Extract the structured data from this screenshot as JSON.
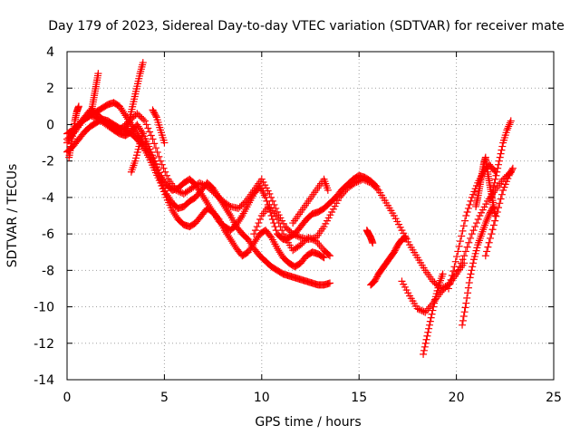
{
  "chart_data": {
    "type": "scatter",
    "title": "Day 179 of 2023, Sidereal Day-to-day VTEC variation (SDTVAR) for receiver mate",
    "xlabel": "GPS time / hours",
    "ylabel": "SDTVAR / TECUs",
    "xlim": [
      0,
      25
    ],
    "ylim": [
      -14,
      4
    ],
    "xticks": [
      0,
      5,
      10,
      15,
      20,
      25
    ],
    "yticks": [
      -14,
      -12,
      -10,
      -8,
      -6,
      -4,
      -2,
      0,
      2,
      4
    ],
    "grid": true,
    "marker": "+",
    "series": [
      {
        "color": "#ff0000",
        "tracks": [
          {
            "x": [
              0.0,
              0.3,
              0.6,
              0.9,
              1.2,
              1.5,
              1.8,
              2.1,
              2.4,
              2.7,
              3.0,
              3.3,
              3.6,
              3.9,
              4.2,
              4.5,
              4.8,
              5.1,
              5.4,
              5.7,
              6.0,
              6.3,
              6.6,
              6.9,
              7.2,
              7.5,
              7.8,
              8.1,
              8.4,
              8.7,
              9.0,
              9.3,
              9.6,
              9.9,
              10.2,
              10.5,
              10.8,
              11.1,
              11.4,
              11.7,
              12.0,
              12.3,
              12.6,
              12.9,
              13.2,
              13.5
            ],
            "y": [
              -1.0,
              -0.5,
              0.0,
              0.3,
              0.5,
              0.7,
              0.9,
              1.1,
              1.2,
              1.0,
              0.5,
              0.0,
              -0.5,
              -1.0,
              -1.5,
              -2.2,
              -3.0,
              -3.8,
              -4.3,
              -4.6,
              -4.5,
              -4.2,
              -4.0,
              -3.6,
              -3.2,
              -3.5,
              -4.0,
              -4.5,
              -5.0,
              -5.6,
              -6.0,
              -6.3,
              -6.8,
              -7.2,
              -7.5,
              -7.8,
              -8.0,
              -8.2,
              -8.3,
              -8.4,
              -8.5,
              -8.6,
              -8.7,
              -8.8,
              -8.8,
              -8.7
            ]
          },
          {
            "x": [
              0.0,
              0.3,
              0.6,
              0.9,
              1.2,
              1.5,
              1.8,
              2.1,
              2.4,
              2.7,
              3.0,
              3.3,
              3.6,
              3.9,
              4.2,
              4.5,
              4.8,
              5.1,
              5.4,
              5.7,
              6.0,
              6.3,
              6.6,
              6.9,
              7.2,
              7.5,
              7.8,
              8.1,
              8.4,
              8.7,
              9.0,
              9.3,
              9.6,
              9.9,
              10.2,
              10.5,
              10.8,
              11.1,
              11.4,
              11.7,
              12.0,
              12.3,
              12.6,
              12.9,
              13.2
            ],
            "y": [
              -1.5,
              -1.2,
              -0.8,
              -0.4,
              -0.1,
              0.1,
              0.3,
              0.2,
              0.0,
              -0.2,
              -0.3,
              -0.5,
              -0.8,
              -1.2,
              -1.8,
              -2.5,
              -3.2,
              -4.0,
              -4.7,
              -5.2,
              -5.5,
              -5.6,
              -5.4,
              -5.0,
              -4.6,
              -4.8,
              -5.2,
              -5.8,
              -6.3,
              -6.8,
              -7.2,
              -7.0,
              -6.5,
              -6.0,
              -5.8,
              -6.2,
              -6.8,
              -7.3,
              -7.6,
              -7.8,
              -7.6,
              -7.2,
              -7.0,
              -7.1,
              -7.3
            ]
          },
          {
            "x": [
              0.0,
              0.3,
              0.6,
              0.9,
              1.2,
              1.5,
              1.8,
              2.1,
              2.4,
              2.7,
              3.0,
              3.3,
              3.6,
              3.9,
              4.2,
              4.5,
              4.8,
              5.1,
              5.4,
              5.7,
              6.0,
              6.3,
              6.6,
              6.9,
              7.2,
              7.5,
              7.8,
              8.1,
              8.4,
              8.7,
              9.0,
              9.3,
              9.6,
              9.9,
              10.2,
              10.5,
              10.8,
              11.1,
              11.4,
              11.7,
              12.0,
              12.3,
              12.6,
              12.9,
              13.2,
              13.5,
              13.8,
              14.1,
              14.4,
              14.7,
              15.0,
              15.3,
              15.6,
              15.9
            ],
            "y": [
              -0.5,
              -0.3,
              0.0,
              0.4,
              0.8,
              0.6,
              0.3,
              0.0,
              -0.3,
              -0.5,
              -0.6,
              -0.4,
              0.0,
              -0.5,
              -1.2,
              -2.0,
              -2.8,
              -3.3,
              -3.6,
              -3.5,
              -3.2,
              -3.0,
              -3.3,
              -3.8,
              -4.3,
              -4.8,
              -5.3,
              -5.6,
              -5.8,
              -5.5,
              -5.0,
              -4.4,
              -3.8,
              -3.4,
              -4.0,
              -5.0,
              -6.0,
              -6.3,
              -6.2,
              -6.0,
              -5.6,
              -5.2,
              -4.9,
              -4.8,
              -4.6,
              -4.3,
              -4.0,
              -3.6,
              -3.3,
              -3.0,
              -2.8,
              -2.9,
              -3.1,
              -3.4
            ]
          },
          {
            "x": [
              0.0,
              0.4,
              0.8,
              1.2,
              1.6,
              2.0,
              2.4,
              2.8,
              3.2,
              3.6,
              4.0,
              4.4,
              4.8,
              5.2,
              5.6,
              6.0,
              6.4,
              6.8,
              7.2,
              7.6,
              8.0,
              8.4,
              8.8,
              9.2,
              9.6,
              10.0,
              10.4,
              10.8,
              11.2,
              11.6,
              12.0,
              12.4,
              12.8,
              13.2,
              13.6,
              14.0,
              14.4,
              14.8,
              15.2,
              15.6,
              16.0,
              16.4,
              16.8,
              17.2,
              17.6,
              18.0,
              18.4,
              18.8,
              19.2,
              19.6,
              20.0,
              20.4,
              20.8,
              21.2,
              21.6,
              22.0,
              22.4,
              22.8
            ],
            "y": [
              -0.8,
              -0.4,
              0.2,
              0.5,
              0.3,
              0.0,
              -0.3,
              -0.2,
              0.2,
              0.6,
              0.2,
              -0.8,
              -2.0,
              -3.0,
              -3.6,
              -3.8,
              -3.5,
              -3.2,
              -3.4,
              -3.8,
              -4.2,
              -4.5,
              -4.6,
              -4.2,
              -3.6,
              -3.0,
              -3.8,
              -4.8,
              -5.6,
              -6.0,
              -6.2,
              -6.3,
              -6.2,
              -5.6,
              -4.8,
              -4.0,
              -3.5,
              -3.2,
              -3.0,
              -3.2,
              -3.6,
              -4.3,
              -5.0,
              -5.8,
              -6.6,
              -7.3,
              -8.0,
              -8.6,
              -9.0,
              -8.8,
              -8.2,
              -7.2,
              -6.0,
              -5.0,
              -4.2,
              -3.6,
              -3.0,
              -2.6
            ]
          },
          {
            "x": [
              1.2,
              1.3,
              1.4,
              1.5,
              1.6
            ],
            "y": [
              0.5,
              1.0,
              1.6,
              2.2,
              2.8
            ]
          },
          {
            "x": [
              3.0,
              3.15,
              3.3,
              3.45,
              3.6,
              3.75,
              3.9
            ],
            "y": [
              -0.5,
              0.0,
              0.7,
              1.4,
              2.1,
              2.8,
              3.4
            ]
          },
          {
            "x": [
              0.1,
              0.2,
              0.3,
              0.4,
              0.5,
              0.6
            ],
            "y": [
              -1.8,
              -1.2,
              -0.5,
              0.2,
              0.7,
              1.0
            ]
          },
          {
            "x": [
              3.3,
              3.5,
              3.7,
              3.9
            ],
            "y": [
              -2.6,
              -2.0,
              -1.2,
              -0.5
            ]
          },
          {
            "x": [
              4.4,
              4.6,
              4.8,
              5.0
            ],
            "y": [
              0.8,
              0.4,
              -0.3,
              -1.0
            ]
          },
          {
            "x": [
              9.6,
              10.0,
              10.4,
              10.8,
              11.2,
              11.6,
              12.0,
              12.4,
              12.8,
              13.2,
              13.5
            ],
            "y": [
              -6.0,
              -5.0,
              -4.4,
              -5.2,
              -6.2,
              -6.9,
              -6.6,
              -6.2,
              -6.4,
              -6.9,
              -7.2
            ]
          },
          {
            "x": [
              11.6,
              12.0,
              12.4,
              12.8,
              13.2,
              13.4
            ],
            "y": [
              -5.4,
              -4.8,
              -4.2,
              -3.6,
              -3.0,
              -3.6
            ]
          },
          {
            "x": [
              15.4,
              15.5,
              15.6,
              15.7
            ],
            "y": [
              -5.8,
              -6.0,
              -6.2,
              -6.5
            ]
          },
          {
            "x": [
              15.6,
              15.8,
              16.0,
              16.2,
              16.4,
              16.6,
              16.8,
              17.0,
              17.2,
              17.4
            ],
            "y": [
              -8.8,
              -8.6,
              -8.2,
              -7.9,
              -7.6,
              -7.3,
              -7.0,
              -6.6,
              -6.3,
              -6.2
            ]
          },
          {
            "x": [
              17.2,
              17.6,
              18.0,
              18.4,
              18.8,
              19.2,
              19.6,
              20.0,
              20.4
            ],
            "y": [
              -8.6,
              -9.4,
              -10.1,
              -10.3,
              -9.8,
              -9.2,
              -8.8,
              -8.2,
              -7.6
            ]
          },
          {
            "x": [
              18.3,
              18.5,
              18.7,
              18.9,
              19.1,
              19.3
            ],
            "y": [
              -12.6,
              -11.6,
              -10.6,
              -9.6,
              -8.8,
              -8.2
            ]
          },
          {
            "x": [
              20.3,
              20.5,
              20.7,
              20.9,
              21.1,
              21.3,
              21.5,
              21.7,
              21.9
            ],
            "y": [
              -11.0,
              -9.8,
              -8.4,
              -7.4,
              -6.6,
              -6.0,
              -5.4,
              -4.9,
              -4.5
            ]
          },
          {
            "x": [
              19.6,
              19.9,
              20.2,
              20.5,
              20.8,
              21.1,
              21.4,
              21.7,
              22.0
            ],
            "y": [
              -9.0,
              -7.8,
              -6.4,
              -5.0,
              -4.0,
              -3.2,
              -2.6,
              -2.2,
              -2.6
            ]
          },
          {
            "x": [
              21.0,
              21.1,
              21.2,
              21.3,
              21.4,
              21.5,
              21.6,
              21.7,
              21.8,
              21.9,
              22.0
            ],
            "y": [
              -4.5,
              -4.0,
              -3.4,
              -2.8,
              -2.2,
              -1.8,
              -2.6,
              -3.2,
              -3.8,
              -4.4,
              -5.0
            ]
          },
          {
            "x": [
              21.8,
              22.0,
              22.2,
              22.4,
              22.6,
              22.8
            ],
            "y": [
              -4.0,
              -3.0,
              -2.0,
              -1.0,
              -0.3,
              0.2
            ]
          },
          {
            "x": [
              21.5,
              21.8,
              22.1,
              22.4,
              22.7,
              22.9
            ],
            "y": [
              -7.2,
              -6.0,
              -4.8,
              -3.6,
              -2.8,
              -2.4
            ]
          }
        ]
      }
    ]
  }
}
